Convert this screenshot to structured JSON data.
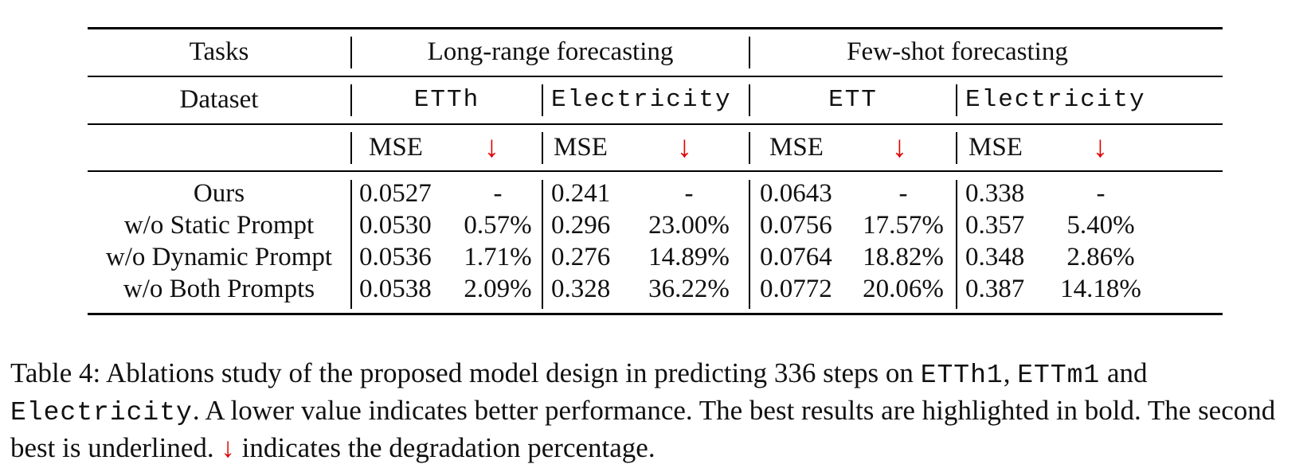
{
  "table": {
    "header": {
      "tasks_label": "Tasks",
      "long_range": "Long-range forecasting",
      "few_shot": "Few-shot forecasting",
      "dataset_label": "Dataset",
      "datasets": [
        "ETTh",
        "Electricity",
        "ETT",
        "Electricity"
      ],
      "metric": "MSE",
      "arrow": "↓"
    },
    "rows": [
      {
        "label": "Ours",
        "cells": [
          "0.0527",
          "-",
          "0.241",
          "-",
          "0.0643",
          "-",
          "0.338",
          "-"
        ]
      },
      {
        "label": "w/o Static Prompt",
        "cells": [
          "0.0530",
          "0.57%",
          "0.296",
          "23.00%",
          "0.0756",
          "17.57%",
          "0.357",
          "5.40%"
        ]
      },
      {
        "label": "w/o Dynamic Prompt",
        "cells": [
          "0.0536",
          "1.71%",
          "0.276",
          "14.89%",
          "0.0764",
          "18.82%",
          "0.348",
          "2.86%"
        ]
      },
      {
        "label": "w/o Both Prompts",
        "cells": [
          "0.0538",
          "2.09%",
          "0.328",
          "36.22%",
          "0.0772",
          "20.06%",
          "0.387",
          "14.18%"
        ]
      }
    ]
  },
  "caption": {
    "part1": "Table 4:  Ablations study of the proposed model design in predicting 336 steps on ",
    "code1": "ETTh1",
    "sep": ", ",
    "code2": "ETTm1",
    "part2": " and ",
    "code3": "Electricity",
    "part3": ". A lower value indicates better performance. The best results are highlighted in bold. The second best is underlined. ",
    "arrow": "↓",
    "part4": " indicates the degradation percentage."
  }
}
